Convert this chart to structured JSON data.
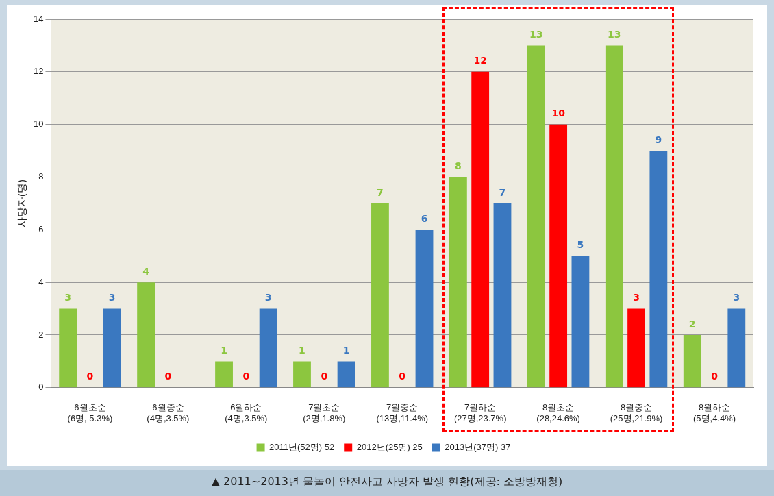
{
  "chart_data": {
    "type": "bar",
    "ylabel": "사망자(명)",
    "categories": [
      "6월초순\n(6명, 5.3%)",
      "6월중순\n(4명,3.5%)",
      "6월하순\n(4명,3.5%)",
      "7월초순\n(2명,1.8%)",
      "7월중순\n(13명,11.4%)",
      "7월하순\n(27명,23.7%)",
      "8월초순\n(28,24.6%)",
      "8월중순\n(25명,21.9%)",
      "8월하순\n(5명,4.4%)"
    ],
    "series": [
      {
        "name": "2011년(52명) 52",
        "color": "#8cc63f",
        "values": [
          3,
          4,
          1,
          1,
          7,
          8,
          13,
          13,
          2
        ],
        "value_labels": [
          "3",
          "4",
          "1",
          "1",
          "7",
          "8",
          "13",
          "13",
          "2"
        ]
      },
      {
        "name": "2012년(25명) 25",
        "color": "#ff0000",
        "values": [
          0,
          0,
          0,
          0,
          0,
          12,
          10,
          3,
          0
        ],
        "value_labels": [
          "0",
          "0",
          "0",
          "0",
          "0",
          "12",
          "10",
          "3",
          "0"
        ]
      },
      {
        "name": "2013년(37명) 37",
        "color": "#3a78c0",
        "values": [
          3,
          0,
          3,
          1,
          6,
          7,
          5,
          9,
          3
        ],
        "value_labels": [
          "3",
          null,
          "3",
          "1",
          "6",
          "7",
          "5",
          "9",
          "3"
        ]
      }
    ],
    "ylim": [
      0,
      14
    ],
    "yticks": [
      0,
      2,
      4,
      6,
      8,
      10,
      12,
      14
    ],
    "grid": "y",
    "legend": "bottom",
    "annotations": [
      "▲ 2011~2013년 물놀이 안전사고 사망자 발생 현황(제공: 소방방재청)"
    ]
  }
}
